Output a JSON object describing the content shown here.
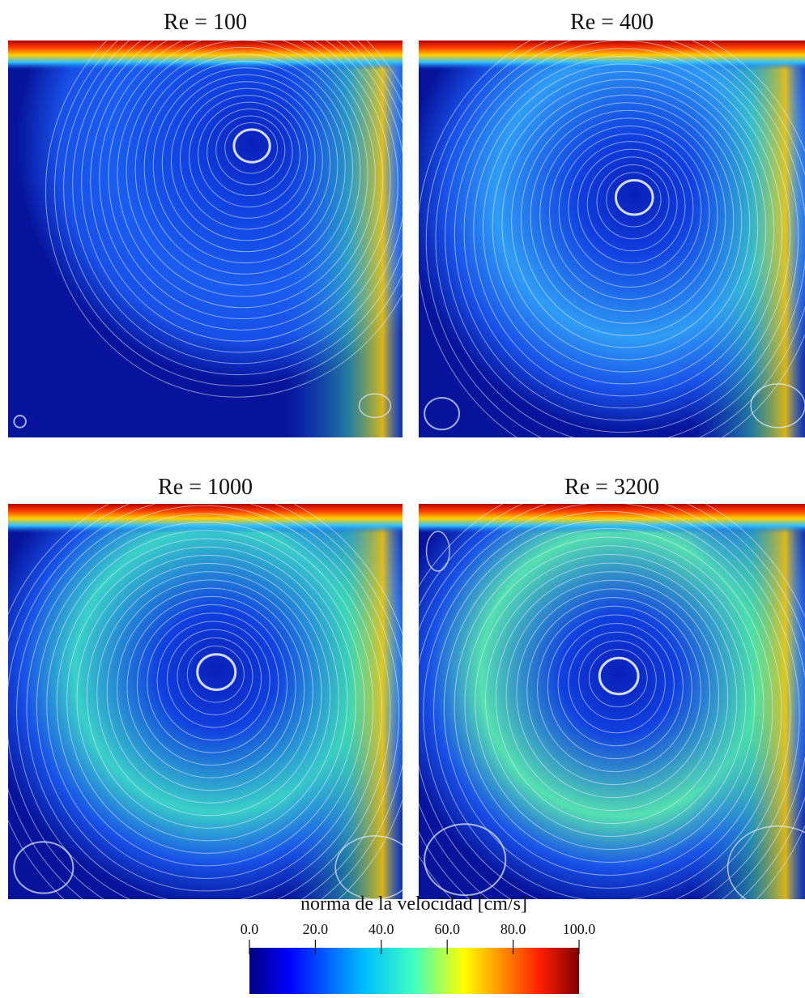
{
  "panels": [
    {
      "title": "Re = 100"
    },
    {
      "title": "Re = 400"
    },
    {
      "title": "Re = 1000"
    },
    {
      "title": "Re = 3200"
    }
  ],
  "colorbar": {
    "title": "norma de la velocidad [cm/s]",
    "lim": [
      0,
      100
    ],
    "ticks": [
      {
        "value": 0,
        "label": "0.0"
      },
      {
        "value": 20,
        "label": "20.0"
      },
      {
        "value": 40,
        "label": "40.0"
      },
      {
        "value": 60,
        "label": "60.0"
      },
      {
        "value": 80,
        "label": "80.0"
      },
      {
        "value": 100,
        "label": "100.0"
      }
    ]
  }
}
